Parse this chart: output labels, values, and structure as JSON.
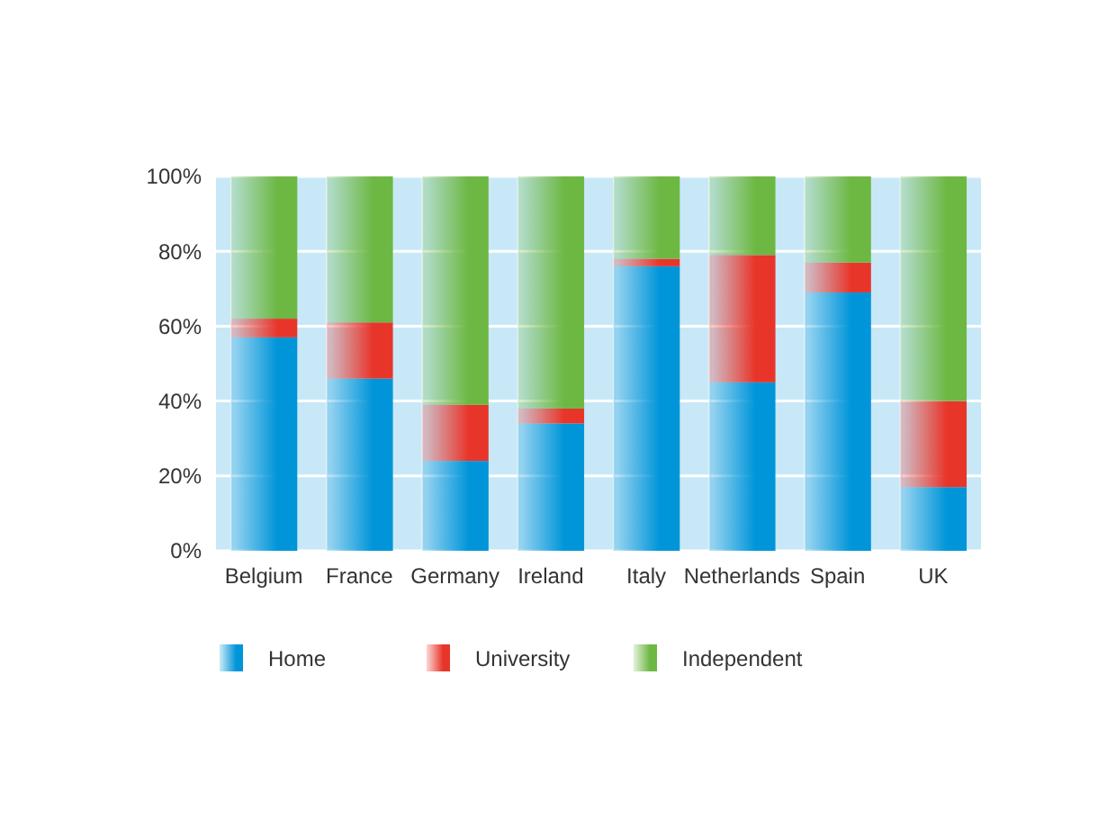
{
  "chart_data": {
    "type": "bar",
    "stacked": true,
    "categories": [
      "Belgium",
      "France",
      "Germany",
      "Ireland",
      "Italy",
      "Netherlands",
      "Spain",
      "UK"
    ],
    "series": [
      {
        "name": "Home",
        "color": "#0095d9",
        "values": [
          57,
          46,
          24,
          34,
          76,
          45,
          69,
          17
        ]
      },
      {
        "name": "University",
        "color": "#e8352a",
        "values": [
          5,
          15,
          15,
          4,
          2,
          34,
          8,
          23
        ]
      },
      {
        "name": "Independent",
        "color": "#6db843",
        "values": [
          38,
          39,
          61,
          62,
          22,
          21,
          23,
          60
        ]
      }
    ],
    "ylim": [
      0,
      100
    ],
    "yticks": [
      {
        "value": 0,
        "label": "0%"
      },
      {
        "value": 20,
        "label": "20%"
      },
      {
        "value": 40,
        "label": "40%"
      },
      {
        "value": 60,
        "label": "60%"
      },
      {
        "value": 80,
        "label": "80%"
      },
      {
        "value": 100,
        "label": "100%"
      }
    ],
    "grid": "y",
    "legend": "bottom"
  }
}
